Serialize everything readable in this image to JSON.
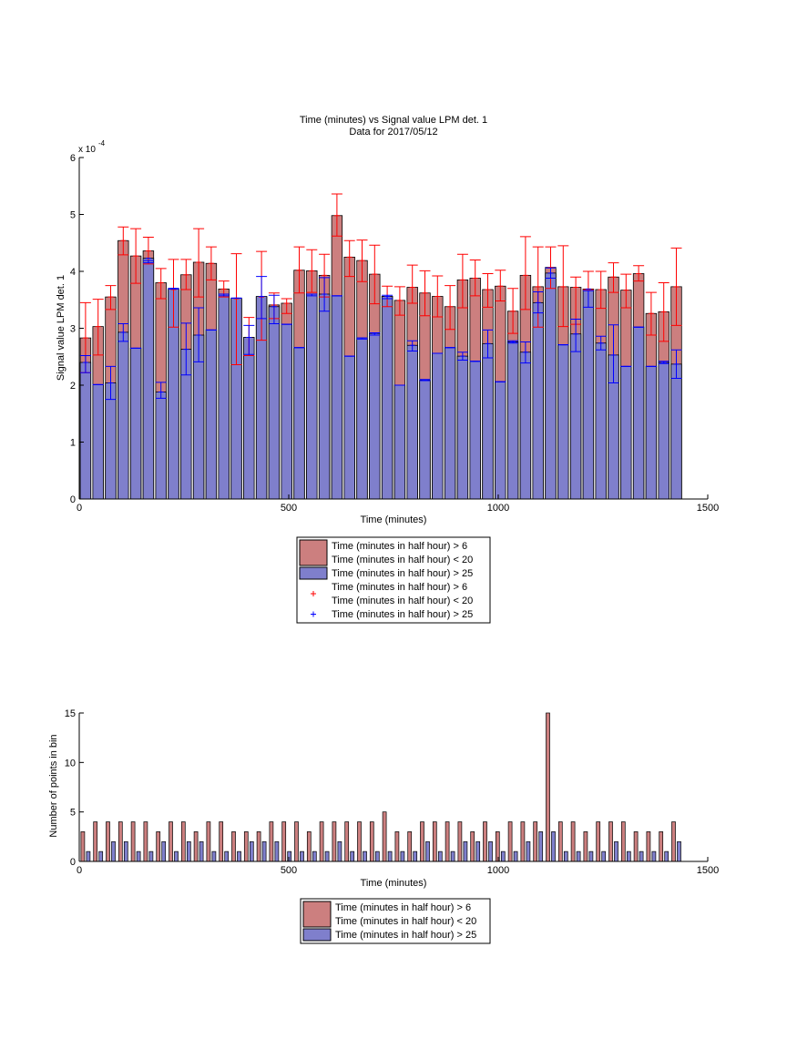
{
  "chart_data": [
    {
      "type": "bar",
      "title": "Time (minutes) vs Signal value LPM det. 1",
      "subtitle": "Data for 2017/05/12",
      "xlabel": "Time (minutes)",
      "ylabel": "Signal value LPM det. 1",
      "y_exponent": "x 10",
      "y_exponent_power": "-4",
      "xlim": [
        0,
        1500
      ],
      "ylim": [
        0,
        6
      ],
      "xticks": [
        "0",
        "500",
        "1000",
        "1500"
      ],
      "yticks": [
        "0",
        "1",
        "2",
        "3",
        "4",
        "5",
        "6"
      ],
      "grid": false,
      "legend_position": "below",
      "x": [
        15,
        45,
        75,
        105,
        135,
        165,
        195,
        225,
        255,
        285,
        315,
        345,
        375,
        405,
        435,
        465,
        495,
        525,
        555,
        585,
        615,
        645,
        675,
        705,
        735,
        765,
        795,
        825,
        855,
        885,
        915,
        945,
        975,
        1005,
        1035,
        1065,
        1095,
        1125,
        1155,
        1185,
        1215,
        1245,
        1275,
        1305,
        1335,
        1365,
        1395,
        1425
      ],
      "series": [
        {
          "name": "Time (minutes in half hour) > 6",
          "name_line2": "Time (minutes in half hour) < 20",
          "color": "#cc7f7f",
          "values": [
            2.83,
            3.03,
            3.55,
            4.54,
            4.27,
            4.36,
            3.8,
            3.68,
            3.94,
            4.16,
            4.14,
            3.69,
            3.52,
            2.84,
            3.55,
            3.41,
            3.44,
            4.02,
            4.01,
            3.93,
            4.98,
            4.25,
            4.19,
            3.95,
            3.56,
            3.49,
            3.72,
            3.62,
            3.56,
            3.38,
            3.85,
            3.88,
            3.68,
            3.74,
            3.3,
            3.93,
            3.73,
            4.07,
            3.73,
            3.72,
            3.68,
            3.68,
            3.9,
            3.67,
            3.96,
            3.26,
            3.29,
            3.73
          ],
          "err_low": [
            2.22,
            2.53,
            3.33,
            4.29,
            3.79,
            4.13,
            3.52,
            3.02,
            3.68,
            3.55,
            3.85,
            3.55,
            2.36,
            2.52,
            2.79,
            3.17,
            3.26,
            3.62,
            3.63,
            3.55,
            4.62,
            3.91,
            3.82,
            3.43,
            3.38,
            3.23,
            3.44,
            3.22,
            3.2,
            2.98,
            3.36,
            3.57,
            3.37,
            3.48,
            2.91,
            3.33,
            3.02,
            3.7,
            3.03,
            3.07,
            3.68,
            3.35,
            3.63,
            3.36,
            3.83,
            2.88,
            2.77,
            3.05
          ],
          "err_high": [
            3.45,
            3.51,
            3.75,
            4.78,
            4.75,
            4.6,
            4.05,
            4.21,
            4.21,
            4.75,
            4.43,
            3.83,
            4.31,
            3.19,
            4.35,
            3.62,
            3.52,
            4.43,
            4.38,
            4.3,
            5.36,
            4.54,
            4.55,
            4.46,
            3.74,
            3.73,
            4.11,
            4.01,
            3.92,
            3.75,
            4.3,
            4.2,
            3.96,
            4.02,
            3.7,
            4.61,
            4.43,
            4.43,
            4.45,
            3.9,
            4.0,
            4.0,
            4.15,
            3.95,
            4.1,
            3.63,
            3.8,
            4.41
          ]
        },
        {
          "name": "Time (minutes in half hour) > 25",
          "color": "#7f7fcc",
          "values": [
            2.4,
            2.01,
            2.04,
            2.93,
            2.65,
            4.23,
            1.88,
            3.7,
            2.63,
            2.88,
            2.97,
            3.6,
            3.53,
            2.84,
            3.56,
            3.38,
            3.07,
            2.66,
            3.6,
            3.6,
            3.57,
            2.51,
            2.83,
            2.91,
            3.56,
            2.0,
            2.7,
            2.09,
            2.56,
            2.66,
            2.51,
            2.42,
            2.73,
            2.06,
            2.76,
            2.58,
            3.45,
            3.97,
            2.71,
            2.9,
            3.69,
            2.74,
            2.53,
            2.33,
            3.02,
            2.33,
            2.4,
            2.37
          ],
          "err_low": [
            2.22,
            2.01,
            1.75,
            2.77,
            2.65,
            4.15,
            1.77,
            3.7,
            2.18,
            2.41,
            2.97,
            3.57,
            3.53,
            2.54,
            3.17,
            3.08,
            3.07,
            2.66,
            3.57,
            3.3,
            3.57,
            2.51,
            2.81,
            2.88,
            3.52,
            2.0,
            2.6,
            2.08,
            2.56,
            2.66,
            2.44,
            2.42,
            2.48,
            2.06,
            2.74,
            2.39,
            3.27,
            3.88,
            2.71,
            2.59,
            3.37,
            2.62,
            2.04,
            2.33,
            3.02,
            2.33,
            2.38,
            2.12
          ],
          "err_high": [
            2.52,
            2.01,
            2.33,
            3.08,
            2.65,
            4.19,
            2.05,
            3.69,
            3.09,
            3.36,
            2.97,
            3.6,
            3.53,
            3.05,
            3.91,
            3.58,
            3.07,
            2.66,
            3.6,
            3.89,
            3.57,
            2.51,
            2.83,
            2.92,
            3.58,
            2.0,
            2.78,
            2.1,
            2.56,
            2.66,
            2.58,
            2.42,
            2.97,
            2.06,
            2.78,
            2.76,
            3.64,
            4.06,
            2.71,
            3.16,
            3.66,
            2.86,
            3.06,
            2.33,
            3.02,
            2.33,
            2.42,
            2.62
          ]
        }
      ],
      "legend": [
        {
          "kind": "patch",
          "color": "#cc7f7f",
          "lines": [
            "Time (minutes in half hour) > 6",
            "Time (minutes in half hour) < 20"
          ]
        },
        {
          "kind": "patch",
          "color": "#7f7fcc",
          "lines": [
            "Time (minutes in half hour) > 25"
          ]
        },
        {
          "kind": "marker",
          "color": "#ff0000",
          "lines": [
            "Time (minutes in half hour) > 6",
            "Time (minutes in half hour) < 20"
          ]
        },
        {
          "kind": "marker",
          "color": "#0000ff",
          "lines": [
            "Time (minutes in half hour) > 25"
          ]
        }
      ]
    },
    {
      "type": "bar",
      "title": "",
      "xlabel": "Time (minutes)",
      "ylabel": "Number of points in bin",
      "xlim": [
        0,
        1500
      ],
      "ylim": [
        0,
        15
      ],
      "xticks": [
        "0",
        "500",
        "1000",
        "1500"
      ],
      "yticks": [
        "0",
        "5",
        "10",
        "15"
      ],
      "grid": false,
      "legend_position": "below",
      "x": [
        15,
        45,
        75,
        105,
        135,
        165,
        195,
        225,
        255,
        285,
        315,
        345,
        375,
        405,
        435,
        465,
        495,
        525,
        555,
        585,
        615,
        645,
        675,
        705,
        735,
        765,
        795,
        825,
        855,
        885,
        915,
        945,
        975,
        1005,
        1035,
        1065,
        1095,
        1125,
        1155,
        1185,
        1215,
        1245,
        1275,
        1305,
        1335,
        1365,
        1395,
        1425
      ],
      "series": [
        {
          "name": "Time (minutes in half hour) > 6",
          "name_line2": "Time (minutes in half hour) < 20",
          "color": "#cc7f7f",
          "values": [
            3,
            4,
            4,
            4,
            4,
            4,
            3,
            4,
            4,
            3,
            4,
            4,
            3,
            3,
            3,
            4,
            4,
            4,
            3,
            4,
            4,
            4,
            4,
            4,
            5,
            3,
            3,
            4,
            4,
            4,
            4,
            3,
            4,
            3,
            4,
            4,
            4,
            15,
            4,
            4,
            3,
            4,
            4,
            4,
            3,
            3,
            3,
            4
          ]
        },
        {
          "name": "Time (minutes in half hour) > 25",
          "color": "#7f7fcc",
          "values": [
            1,
            1,
            2,
            2,
            1,
            1,
            2,
            1,
            2,
            2,
            1,
            1,
            1,
            2,
            2,
            2,
            1,
            1,
            1,
            1,
            2,
            1,
            1,
            1,
            1,
            1,
            1,
            2,
            1,
            1,
            2,
            2,
            2,
            1,
            1,
            2,
            3,
            3,
            1,
            1,
            1,
            1,
            2,
            1,
            1,
            1,
            1,
            2
          ]
        }
      ],
      "legend": [
        {
          "kind": "patch",
          "color": "#cc7f7f",
          "lines": [
            "Time (minutes in half hour) > 6",
            "Time (minutes in half hour) < 20"
          ]
        },
        {
          "kind": "patch",
          "color": "#7f7fcc",
          "lines": [
            "Time (minutes in half hour) > 25"
          ]
        }
      ]
    }
  ]
}
